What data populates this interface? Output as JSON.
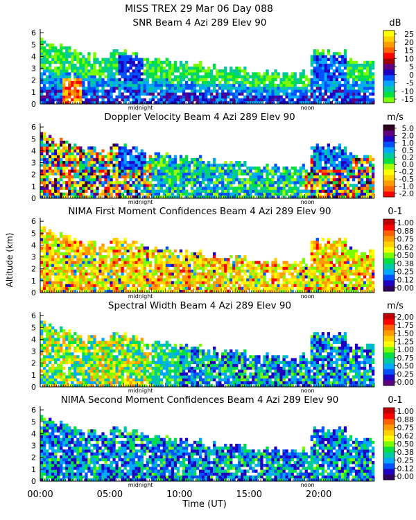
{
  "figure": {
    "title": "MISS TREX    29 Mar 06 Day 088",
    "xlabel": "Time (UT)",
    "ylabel": "Altitude (km)",
    "x_ticks": [
      "00:00",
      "05:00",
      "10:00",
      "15:00",
      "20:00"
    ],
    "day_markers": [
      "midnight",
      "noon"
    ]
  },
  "chart_data": [
    {
      "type": "heatmap",
      "title": "SNR Beam 4 Azi 289 Elev 90",
      "unit": "dB",
      "x_range_hours": [
        0,
        24
      ],
      "ylim_km": [
        0,
        6.3
      ],
      "y_ticks": [
        "0",
        "1",
        "2",
        "3",
        "4",
        "5",
        "6"
      ],
      "colorbar_ticks": [
        "25",
        "20",
        "15",
        "10",
        "5",
        "0",
        "-5",
        "-10",
        "-15"
      ],
      "colors": [
        "#7cfc00",
        "#00e040",
        "#00c8a0",
        "#00a8ff",
        "#0050ff",
        "#2000c0",
        "#600080",
        "#a00000",
        "#ff0000",
        "#ff6000",
        "#ff9a00",
        "#ffd000",
        "#ffff00"
      ],
      "series": [
        {
          "name": "SNR",
          "values": "color-coded field (not numerically labeled)"
        }
      ]
    },
    {
      "type": "heatmap",
      "title": "Doppler Velocity Beam 4 Azi 289 Elev 90",
      "unit": "m/s",
      "x_range_hours": [
        0,
        24
      ],
      "ylim_km": [
        0,
        6.3
      ],
      "y_ticks": [
        "0",
        "1",
        "2",
        "3",
        "4",
        "5",
        "6"
      ],
      "colorbar_ticks": [
        "5.0",
        "2.0",
        "1.0",
        "0.5",
        "0.2",
        "0.0",
        "-0.2",
        "-0.5",
        "-1.0",
        "-2.0"
      ],
      "colors": [
        "#ff0000",
        "#ff6000",
        "#ff9a00",
        "#ffd000",
        "#ffff00",
        "#a0ff00",
        "#00e040",
        "#00c8a0",
        "#00a8ff",
        "#0050ff",
        "#2000c0",
        "#600080",
        "#300020"
      ],
      "series": [
        {
          "name": "Doppler Velocity",
          "values": "color-coded field (not numerically labeled)"
        }
      ]
    },
    {
      "type": "heatmap",
      "title": "NIMA First Moment Confidences Beam 4 Azi 289 Elev 90",
      "unit": "0-1",
      "x_range_hours": [
        0,
        24
      ],
      "ylim_km": [
        0,
        6.3
      ],
      "y_ticks": [
        "0",
        "1",
        "2",
        "3",
        "4",
        "5",
        "6"
      ],
      "colorbar_ticks": [
        "1.00",
        "0.88",
        "0.75",
        "0.62",
        "0.50",
        "0.38",
        "0.25",
        "0.12",
        "0.00"
      ],
      "colors": [
        "#300060",
        "#2000c0",
        "#0050ff",
        "#00a8ff",
        "#00c8a0",
        "#00e040",
        "#7cfc00",
        "#ffff00",
        "#ffd000",
        "#ff9a00",
        "#ff6000",
        "#ff0000",
        "#c00000"
      ],
      "series": [
        {
          "name": "First Moment Confidence",
          "values": "color-coded field (not numerically labeled)"
        }
      ]
    },
    {
      "type": "heatmap",
      "title": "Spectral Width Beam 4 Azi 289 Elev 90",
      "unit": "m/s",
      "x_range_hours": [
        0,
        24
      ],
      "ylim_km": [
        0,
        6.3
      ],
      "y_ticks": [
        "0",
        "1",
        "2",
        "3",
        "4",
        "5",
        "6"
      ],
      "colorbar_ticks": [
        "2.00",
        "1.75",
        "1.50",
        "1.25",
        "1.00",
        "0.75",
        "0.50",
        "0.25",
        "0.00"
      ],
      "colors": [
        "#600080",
        "#2000c0",
        "#0050ff",
        "#00a8ff",
        "#00c8a0",
        "#00e040",
        "#7cfc00",
        "#ffff00",
        "#ffd000",
        "#ff9a00",
        "#ff6000",
        "#ff0000",
        "#c00000"
      ],
      "series": [
        {
          "name": "Spectral Width",
          "values": "color-coded field (not numerically labeled)"
        }
      ]
    },
    {
      "type": "heatmap",
      "title": "NIMA Second Moment Confidences Beam 4 Azi 289 Elev 90",
      "unit": "0-1",
      "x_range_hours": [
        0,
        24
      ],
      "ylim_km": [
        0,
        6.3
      ],
      "y_ticks": [
        "0",
        "1",
        "2",
        "3",
        "4",
        "5",
        "6"
      ],
      "colorbar_ticks": [
        "1.00",
        "0.88",
        "0.75",
        "0.62",
        "0.50",
        "0.38",
        "0.25",
        "0.12",
        "0.00"
      ],
      "colors": [
        "#300060",
        "#2000c0",
        "#0050ff",
        "#00a8ff",
        "#00c8a0",
        "#00e040",
        "#7cfc00",
        "#ffff00",
        "#ffd000",
        "#ff9a00",
        "#ff6000",
        "#ff0000",
        "#c00000"
      ],
      "series": [
        {
          "name": "Second Moment Confidence",
          "values": "color-coded field (not numerically labeled)"
        }
      ]
    }
  ]
}
